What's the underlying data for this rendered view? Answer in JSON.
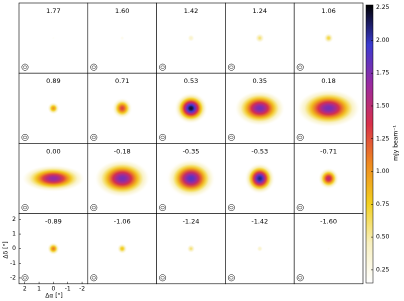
{
  "chart_data": {
    "type": "channel-map",
    "xlabel": "Δα [\"]",
    "ylabel": "Δδ [\"]",
    "colorbar_label": "mJy beam⁻¹",
    "columns": 5,
    "xlim": [
      2.4,
      -2.4
    ],
    "ylim": [
      -2.4,
      2.4
    ],
    "xticks": [
      2,
      1,
      0,
      -1,
      -2
    ],
    "yticks": [
      -2,
      -1,
      0,
      1,
      2
    ],
    "zlim": [
      0.15,
      2.27
    ],
    "zticks": [
      0.25,
      {
        "value": 0.5,
        "label": "0.50"
      },
      0.75,
      {
        "value": 1,
        "label": "1.00"
      },
      1.25,
      {
        "value": 1.5,
        "label": "1.50"
      },
      1.75,
      {
        "value": 2,
        "label": "2.00"
      },
      2.25
    ],
    "colormap": [
      "#ffffff",
      "#f8f0c0",
      "#f2d020",
      "#ee8a20",
      "#d8304a",
      "#9a2aa0",
      "#3a3ad0",
      "#000000"
    ],
    "panels": [
      {
        "label": "1.77",
        "peak": 0.2,
        "rx": 0.3,
        "ry": 0.3
      },
      {
        "label": "1.60",
        "peak": 0.25,
        "rx": 0.35,
        "ry": 0.35
      },
      {
        "label": "1.42",
        "peak": 0.4,
        "rx": 0.4,
        "ry": 0.4
      },
      {
        "label": "1.24",
        "peak": 0.6,
        "rx": 0.45,
        "ry": 0.45
      },
      {
        "label": "1.06",
        "peak": 0.7,
        "rx": 0.45,
        "ry": 0.45
      },
      {
        "label": "0.89",
        "peak": 1.0,
        "rx": 0.5,
        "ry": 0.5
      },
      {
        "label": "0.71",
        "peak": 1.3,
        "rx": 0.8,
        "ry": 0.8
      },
      {
        "label": "0.53",
        "peak": 2.2,
        "rx": 1.2,
        "ry": 1.1
      },
      {
        "label": "0.35",
        "peak": 1.8,
        "rx": 1.9,
        "ry": 1.3
      },
      {
        "label": "0.18",
        "peak": 1.8,
        "rx": 2.4,
        "ry": 1.4
      },
      {
        "label": "0.00",
        "peak": 1.7,
        "rx": 2.4,
        "ry": 1.0
      },
      {
        "label": "-0.18",
        "peak": 1.8,
        "rx": 2.1,
        "ry": 1.4
      },
      {
        "label": "-0.35",
        "peak": 1.9,
        "rx": 1.8,
        "ry": 1.4
      },
      {
        "label": "-0.53",
        "peak": 2.1,
        "rx": 1.1,
        "ry": 1.1
      },
      {
        "label": "-0.71",
        "peak": 1.5,
        "rx": 0.8,
        "ry": 0.8
      },
      {
        "label": "-0.89",
        "peak": 1.1,
        "rx": 0.5,
        "ry": 0.5
      },
      {
        "label": "-1.06",
        "peak": 0.8,
        "rx": 0.45,
        "ry": 0.45
      },
      {
        "label": "-1.24",
        "peak": 0.6,
        "rx": 0.4,
        "ry": 0.4
      },
      {
        "label": "-1.42",
        "peak": 0.4,
        "rx": 0.35,
        "ry": 0.35
      },
      {
        "label": "-1.60",
        "peak": 0.2,
        "rx": 0.3,
        "ry": 0.3
      }
    ]
  }
}
